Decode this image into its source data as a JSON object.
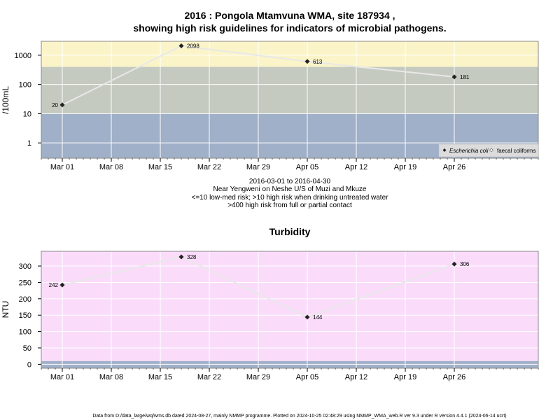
{
  "chart_data": [
    {
      "type": "line",
      "title_line1": "2016 : Pongola Mtamvuna WMA, site 187934 ,",
      "title_line2": "showing high risk guidelines for indicators of microbial pathogens.",
      "xlabel": "",
      "ylabel": "/100mL",
      "y_scale": "log",
      "ylim": [
        0.3,
        3000
      ],
      "x_ticks": [
        "Mar 01",
        "Mar 08",
        "Mar 15",
        "Mar 22",
        "Mar 29",
        "Apr 05",
        "Apr 12",
        "Apr 19",
        "Apr 26"
      ],
      "y_ticks": [
        "1",
        "10",
        "100",
        "1000"
      ],
      "x_range": [
        "2016-02-27",
        "2016-05-08"
      ],
      "bands": [
        {
          "from": 0.3,
          "to": 10,
          "color": "#a0b0c8",
          "meaning": "<=10 low-med risk"
        },
        {
          "from": 10,
          "to": 400,
          "color": "#c4cac0",
          "meaning": ">10 high risk when drinking untreated water"
        },
        {
          "from": 400,
          "to": 3000,
          "color": "#faf4c8",
          "meaning": ">400 high risk from full or partial contact"
        }
      ],
      "series": [
        {
          "name": "Escherichia coli",
          "points": [
            {
              "x": "2016-03-01",
              "y": 20,
              "label": "20"
            },
            {
              "x": "2016-03-18",
              "y": 2098,
              "label": "2098"
            },
            {
              "x": "2016-04-05",
              "y": 613,
              "label": "613"
            },
            {
              "x": "2016-04-26",
              "y": 181,
              "label": "181"
            }
          ]
        },
        {
          "name": "faecal coliforms",
          "points": []
        }
      ],
      "legend": {
        "placement": "bottom-right",
        "entries": [
          "Escherichia coli",
          "faecal coliforms"
        ]
      },
      "notes": [
        "2016-03-01 to 2016-04-30",
        "Near Yengweni on Neshe U/S of Muzi and Mkuze",
        "<=10 low-med risk; >10 high risk when drinking untreated water",
        ">400 high risk from full or partial contact"
      ],
      "grid": true,
      "colors": {
        "line": "#e8e8e8",
        "marker": "#222222",
        "grid": "#ffffff"
      }
    },
    {
      "type": "line",
      "title": "Turbidity",
      "xlabel": "",
      "ylabel": "NTU",
      "ylim": [
        -12,
        345
      ],
      "x_ticks": [
        "Mar 01",
        "Mar 08",
        "Mar 15",
        "Mar 22",
        "Mar 29",
        "Apr 05",
        "Apr 12",
        "Apr 19",
        "Apr 26"
      ],
      "y_ticks": [
        "0",
        "50",
        "100",
        "150",
        "200",
        "250",
        "300"
      ],
      "x_range": [
        "2016-02-27",
        "2016-05-08"
      ],
      "bands": [
        {
          "from": -12,
          "to": 10,
          "color": "#a0b0c8"
        },
        {
          "from": 10,
          "to": 345,
          "color": "#fadcfa"
        }
      ],
      "series": [
        {
          "name": "",
          "points": [
            {
              "x": "2016-03-01",
              "y": 242,
              "label": "242"
            },
            {
              "x": "2016-03-18",
              "y": 328,
              "label": "328"
            },
            {
              "x": "2016-04-05",
              "y": 144,
              "label": "144"
            },
            {
              "x": "2016-04-26",
              "y": 306,
              "label": "306"
            }
          ]
        }
      ],
      "grid": true,
      "colors": {
        "line": "#e8e8e8",
        "marker": "#222222",
        "grid": "#ffffff"
      }
    }
  ],
  "footer": "Data from D:/data_large/wq/wms.db dated 2024-08-27, mainly NMMP programme. Plotted on 2024-10-25 02:48:29 using NMMP_WMA_web.R ver 9.3 under R version 4.4.1 (2024-06-14 ucrt)"
}
